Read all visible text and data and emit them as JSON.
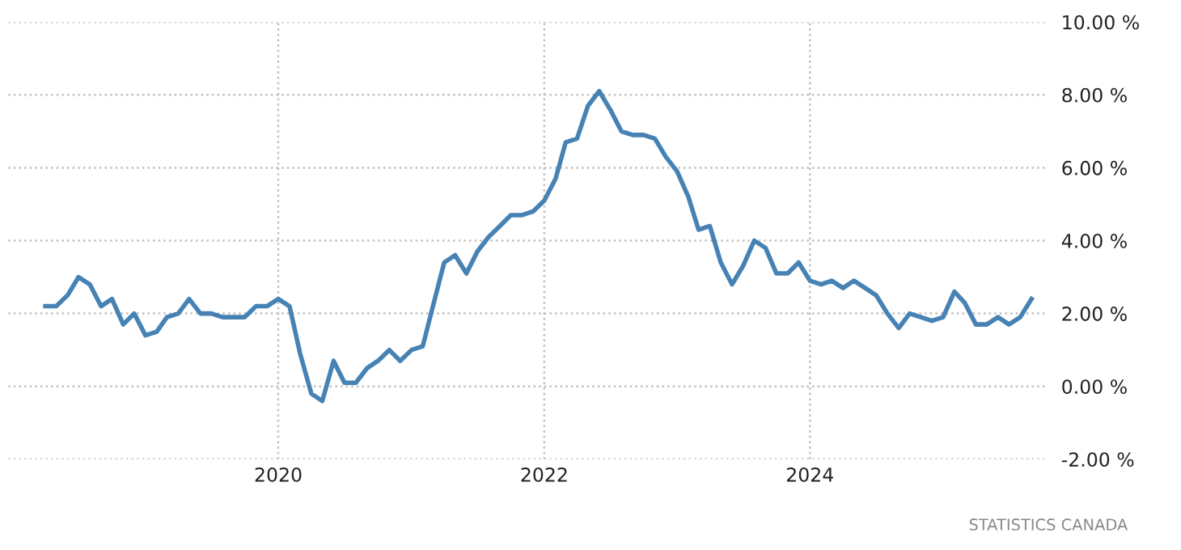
{
  "chart_data": {
    "type": "line",
    "x": [
      "2018-04",
      "2018-05",
      "2018-06",
      "2018-07",
      "2018-08",
      "2018-09",
      "2018-10",
      "2018-11",
      "2018-12",
      "2019-01",
      "2019-02",
      "2019-03",
      "2019-04",
      "2019-05",
      "2019-06",
      "2019-07",
      "2019-08",
      "2019-09",
      "2019-10",
      "2019-11",
      "2019-12",
      "2020-01",
      "2020-02",
      "2020-03",
      "2020-04",
      "2020-05",
      "2020-06",
      "2020-07",
      "2020-08",
      "2020-09",
      "2020-10",
      "2020-11",
      "2020-12",
      "2021-01",
      "2021-02",
      "2021-03",
      "2021-04",
      "2021-05",
      "2021-06",
      "2021-07",
      "2021-08",
      "2021-09",
      "2021-10",
      "2021-11",
      "2021-12",
      "2022-01",
      "2022-02",
      "2022-03",
      "2022-04",
      "2022-05",
      "2022-06",
      "2022-07",
      "2022-08",
      "2022-09",
      "2022-10",
      "2022-11",
      "2022-12",
      "2023-01",
      "2023-02",
      "2023-03",
      "2023-04",
      "2023-05",
      "2023-06",
      "2023-07",
      "2023-08",
      "2023-09",
      "2023-10",
      "2023-11",
      "2023-12",
      "2024-01",
      "2024-02",
      "2024-03",
      "2024-04",
      "2024-05",
      "2024-06",
      "2024-07",
      "2024-08",
      "2024-09",
      "2024-10",
      "2024-11",
      "2024-12",
      "2025-01",
      "2025-02",
      "2025-03",
      "2025-04",
      "2025-05",
      "2025-06",
      "2025-07",
      "2025-08",
      "2025-09"
    ],
    "series": [
      {
        "color": "#4682b4",
        "values": [
          2.2,
          2.2,
          2.5,
          3.0,
          2.8,
          2.2,
          2.4,
          1.7,
          2.0,
          1.4,
          1.5,
          1.9,
          2.0,
          2.4,
          2.0,
          2.0,
          1.9,
          1.9,
          1.9,
          2.2,
          2.2,
          2.4,
          2.2,
          0.9,
          -0.2,
          -0.4,
          0.7,
          0.1,
          0.1,
          0.5,
          0.7,
          1.0,
          0.7,
          1.0,
          1.1,
          2.2,
          3.4,
          3.6,
          3.1,
          3.7,
          4.1,
          4.4,
          4.7,
          4.7,
          4.8,
          5.1,
          5.7,
          6.7,
          6.8,
          7.7,
          8.1,
          7.6,
          7.0,
          6.9,
          6.9,
          6.8,
          6.3,
          5.9,
          5.2,
          4.3,
          4.4,
          3.4,
          2.8,
          3.3,
          4.0,
          3.8,
          3.1,
          3.1,
          3.4,
          2.9,
          2.8,
          2.9,
          2.7,
          2.9,
          2.7,
          2.5,
          2.0,
          1.6,
          2.0,
          1.9,
          1.8,
          1.9,
          2.6,
          2.3,
          1.7,
          1.7,
          1.9,
          1.7,
          1.9,
          2.4
        ]
      }
    ],
    "xlim": [
      "2017-12-20",
      "2025-10-15"
    ],
    "xticks": [
      "2020",
      "2022",
      "2024"
    ],
    "ylim": [
      -2,
      10
    ],
    "yticks": [
      {
        "value": -2,
        "label": "-2.00 %"
      },
      {
        "value": 0,
        "label": "0.00 %"
      },
      {
        "value": 2,
        "label": "2.00 %"
      },
      {
        "value": 4,
        "label": "4.00 %"
      },
      {
        "value": 6,
        "label": "6.00 %"
      },
      {
        "value": 8,
        "label": "8.00 %"
      },
      {
        "value": 10,
        "label": "10.00 %"
      }
    ],
    "grid": true,
    "legend": false,
    "line_style": "solid",
    "annotations": [
      "STATISTICS CANADA"
    ]
  }
}
